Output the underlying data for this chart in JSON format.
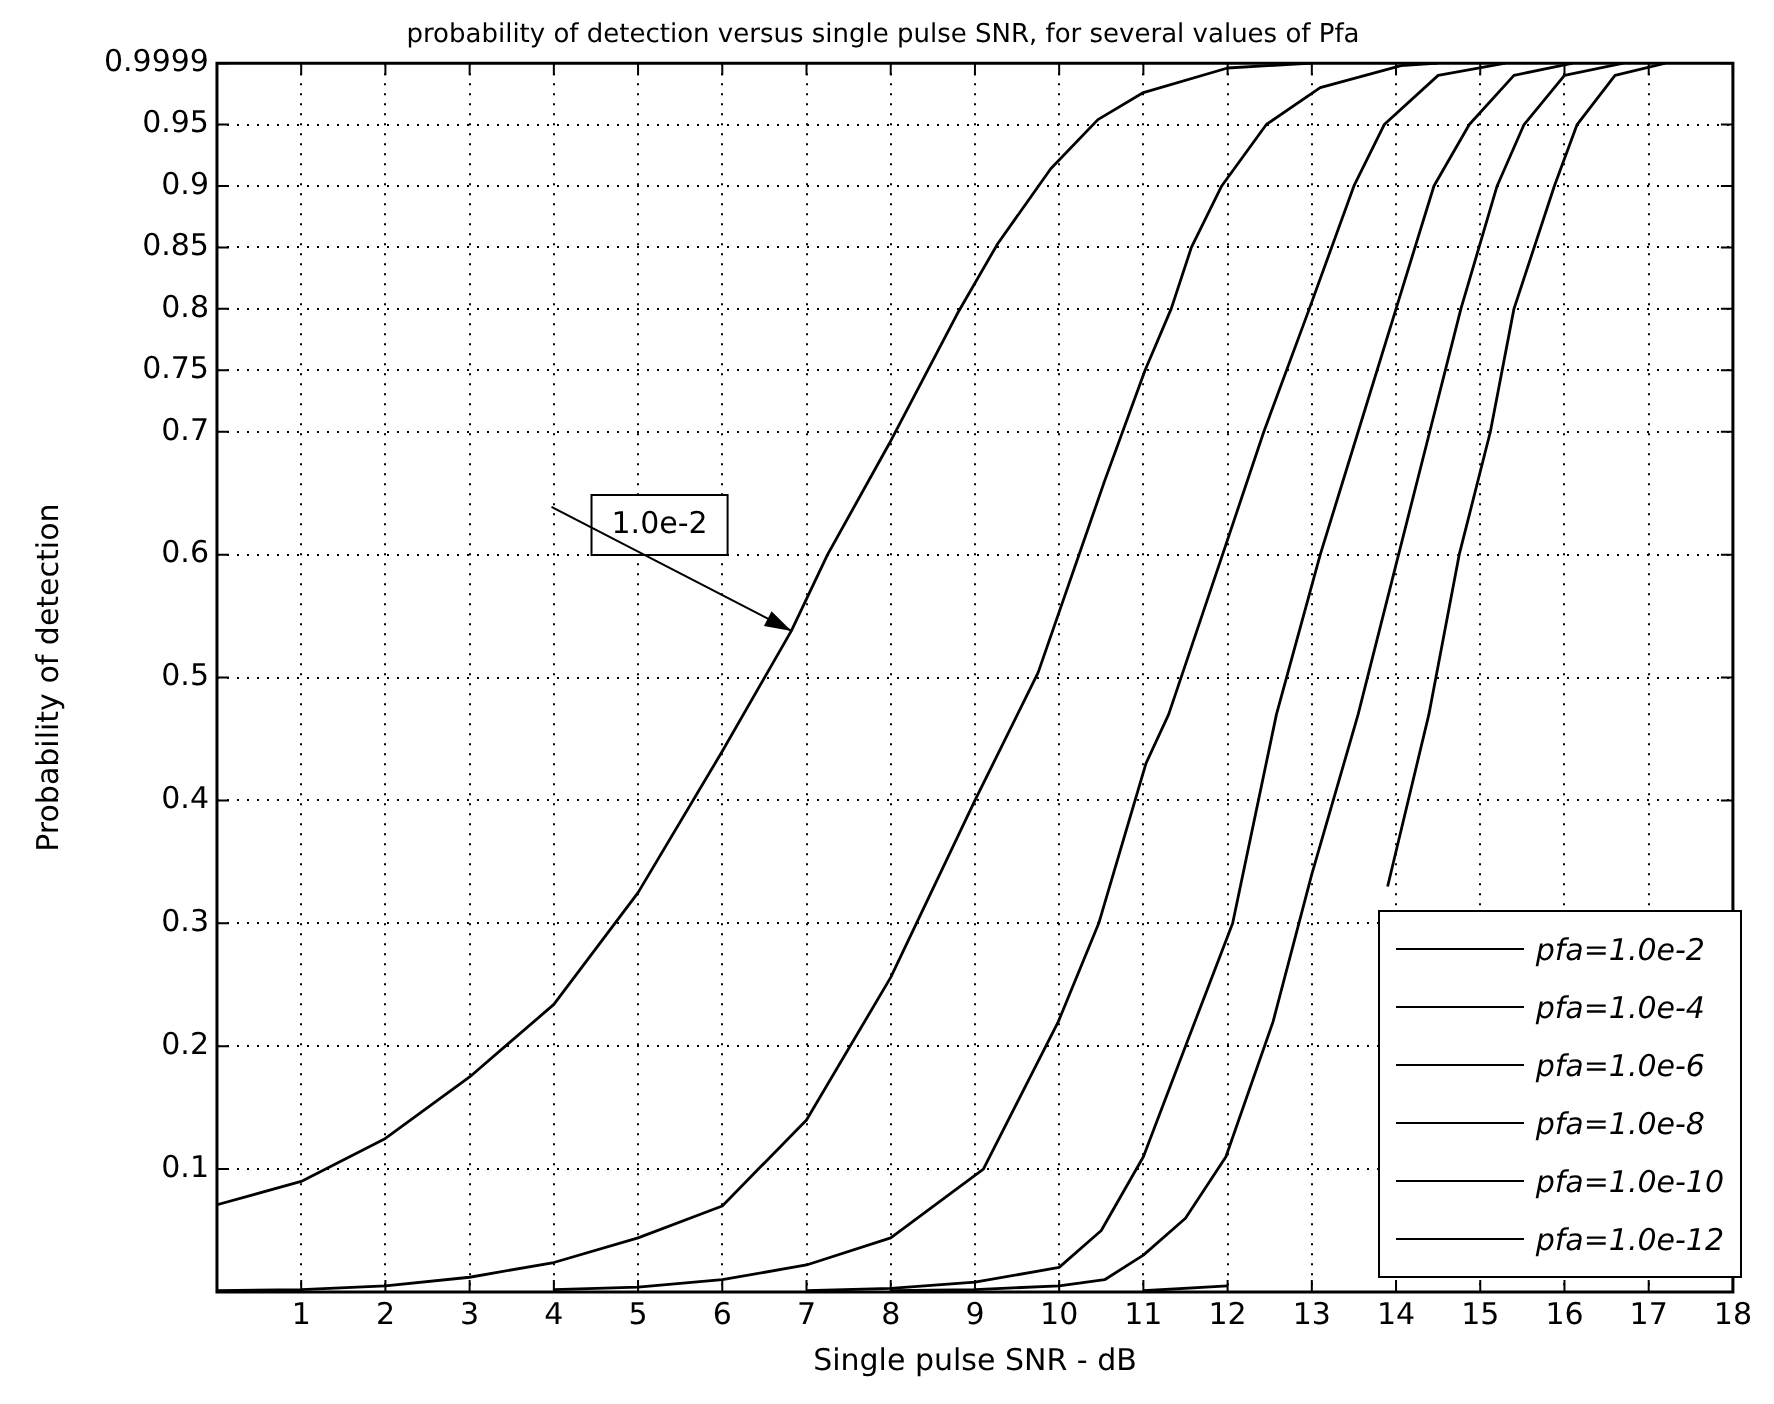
{
  "chart_data": {
    "type": "line",
    "title": "probability of detection versus single pulse SNR, for several values of Pfa",
    "xlabel": "Single pulse SNR - dB",
    "ylabel": "Probability of detection",
    "xlim": [
      0,
      18
    ],
    "xticks": [
      1,
      2,
      3,
      4,
      5,
      6,
      7,
      8,
      9,
      10,
      11,
      12,
      13,
      14,
      15,
      16,
      17,
      18
    ],
    "ylim": [
      0,
      0.9999
    ],
    "yticks": [
      0.1,
      0.2,
      0.3,
      0.4,
      0.5,
      0.6,
      0.7,
      0.75,
      0.8,
      0.85,
      0.9,
      0.95,
      0.9999
    ],
    "grid": true,
    "legend": "bottom right",
    "marker": "none",
    "line_style": "solid",
    "annotations": [
      "1.0e-2"
    ],
    "series": [
      {
        "name": "pfa=1.0e-2",
        "color": "#000000",
        "x": [
          0,
          1,
          2,
          3,
          4,
          5,
          6,
          6.82,
          7.25,
          7.98,
          8.79,
          9.27,
          9.9,
          10.46,
          11,
          12,
          13
        ],
        "values": [
          0.071,
          0.09,
          0.125,
          0.175,
          0.234,
          0.325,
          0.44,
          0.538,
          0.6,
          0.69,
          0.796,
          0.853,
          0.914,
          0.954,
          0.976,
          0.996,
          0.9999
        ]
      },
      {
        "name": "pfa=1.0e-4",
        "color": "#000000",
        "x": [
          0,
          1,
          2,
          3,
          4,
          5,
          6,
          7,
          8,
          9,
          9.75,
          10.54,
          11.02,
          11.33,
          11.57,
          11.93,
          12.46,
          13.1,
          14.06,
          14.5
        ],
        "values": [
          0.001,
          0.002,
          0.005,
          0.012,
          0.024,
          0.044,
          0.07,
          0.14,
          0.256,
          0.4,
          0.504,
          0.66,
          0.75,
          0.8,
          0.85,
          0.9,
          0.95,
          0.98,
          0.998,
          0.9999
        ]
      },
      {
        "name": "pfa=1.0e-6",
        "color": "#000000",
        "x": [
          4,
          5,
          6,
          7,
          8,
          9.1,
          9.99,
          10.47,
          11.03,
          11.3,
          11.94,
          12.43,
          12.97,
          13.5,
          13.86,
          14.5,
          15.3
        ],
        "values": [
          0.002,
          0.004,
          0.01,
          0.022,
          0.044,
          0.1,
          0.22,
          0.3,
          0.43,
          0.47,
          0.6,
          0.7,
          0.8,
          0.9,
          0.95,
          0.99,
          0.9999
        ]
      },
      {
        "name": "pfa=1.0e-8",
        "color": "#000000",
        "x": [
          7,
          8,
          9,
          10,
          10.5,
          11,
          11.5,
          12.06,
          12.58,
          13.1,
          13.55,
          14,
          14.45,
          14.87,
          15.4,
          16.1
        ],
        "values": [
          0.001,
          0.003,
          0.008,
          0.02,
          0.05,
          0.11,
          0.2,
          0.3,
          0.47,
          0.6,
          0.7,
          0.8,
          0.9,
          0.95,
          0.99,
          0.9999
        ]
      },
      {
        "name": "pfa=1.0e-10",
        "color": "#000000",
        "x": [
          8,
          9,
          10,
          10.54,
          11,
          11.5,
          11.98,
          12.54,
          13,
          13.55,
          14.03,
          14.4,
          14.77,
          15.2,
          15.52,
          16,
          16.7
        ],
        "values": [
          0.001,
          0.002,
          0.005,
          0.01,
          0.03,
          0.06,
          0.11,
          0.22,
          0.34,
          0.47,
          0.6,
          0.7,
          0.8,
          0.9,
          0.95,
          0.99,
          0.9999
        ]
      },
      {
        "name": "pfa=1.0e-12",
        "color": "#000000",
        "x": [
          11,
          12,
          13,
          13.9,
          14.39,
          14.75,
          15.12,
          15.4,
          15.88,
          16.15,
          16.6,
          17.2
        ],
        "values": [
          0.001,
          0.005,
          null,
          0.33,
          0.47,
          0.6,
          0.7,
          0.8,
          0.9,
          0.95,
          0.99,
          0.9999
        ]
      }
    ]
  }
}
